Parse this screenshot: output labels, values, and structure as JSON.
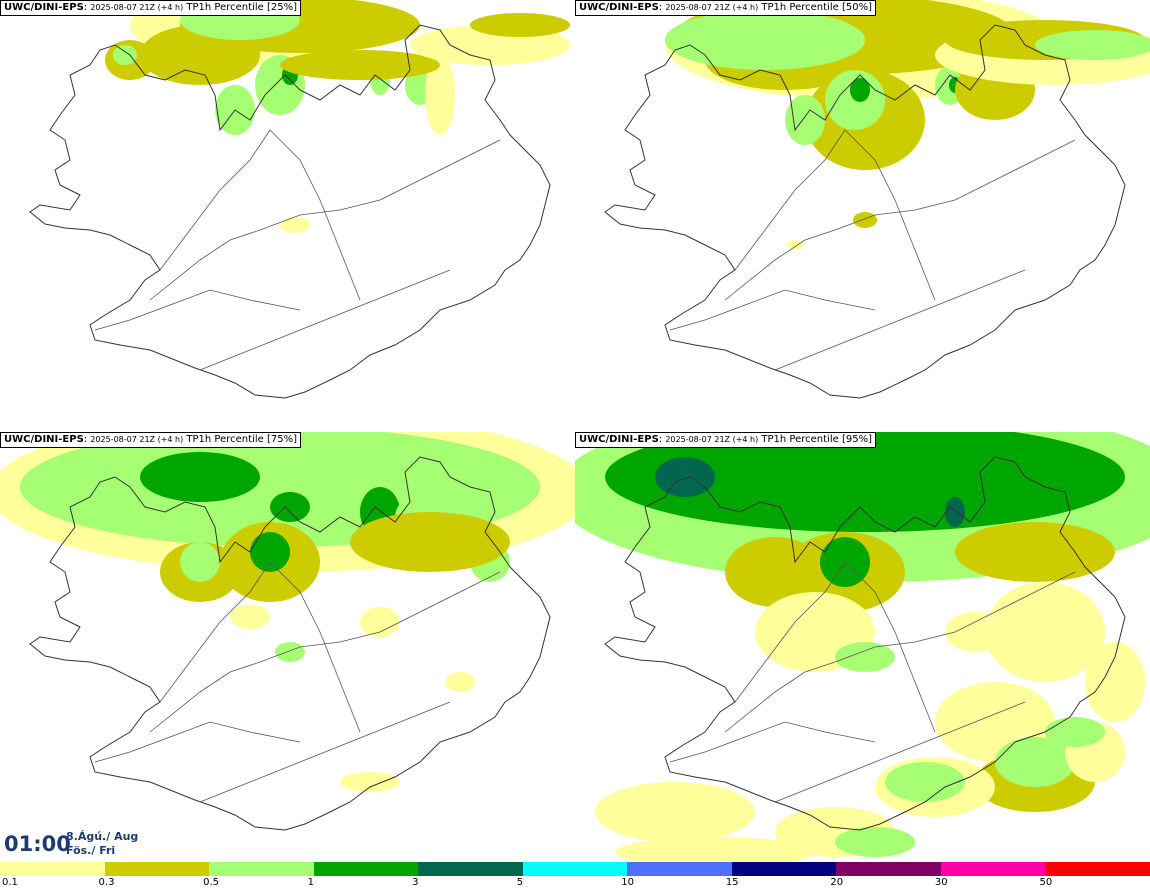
{
  "panels": [
    {
      "model": "UWC/DINI-EPS",
      "run": "2025-08-07 21Z (+4 h)",
      "product": "TP1h Percentile [25%]",
      "level": 0
    },
    {
      "model": "UWC/DINI-EPS",
      "run": "2025-08-07 21Z (+4 h)",
      "product": "TP1h Percentile [50%]",
      "level": 1
    },
    {
      "model": "UWC/DINI-EPS",
      "run": "2025-08-07 21Z (+4 h)",
      "product": "TP1h Percentile [75%]",
      "level": 2
    },
    {
      "model": "UWC/DINI-EPS",
      "run": "2025-08-07 21Z (+4 h)",
      "product": "TP1h Percentile [95%]",
      "level": 3
    }
  ],
  "time": {
    "clock": "01:00",
    "date_line": "8.Ágú./ Aug",
    "day_line": "Fös./ Fri"
  },
  "legend": {
    "colors": [
      "#ffff9b",
      "#cccc00",
      "#a6ff73",
      "#00a600",
      "#00664d",
      "#00ffff",
      "#4d70ff",
      "#000080",
      "#800066",
      "#ff00a6",
      "#ff0000"
    ],
    "labels": [
      "0.1",
      "0.3",
      "0.5",
      "1",
      "3",
      "5",
      "10",
      "15",
      "20",
      "30",
      "50"
    ]
  }
}
